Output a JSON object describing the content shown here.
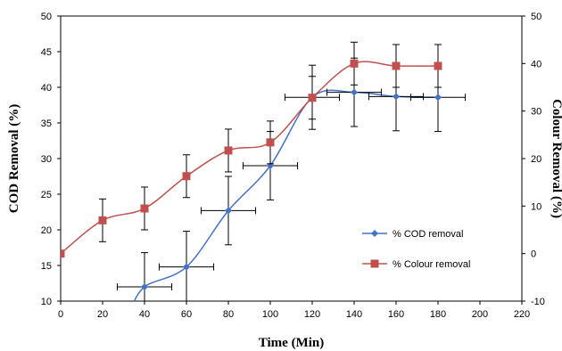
{
  "chart_data": {
    "type": "scatter",
    "title": "",
    "xlabel": "Time (Min)",
    "ylabel": "COD Removal (%)",
    "y2label": "Colour Removal (%)",
    "xlim": [
      0,
      220
    ],
    "ylim": [
      10,
      50
    ],
    "y2lim": [
      -10,
      50
    ],
    "x_ticks": [
      0,
      20,
      40,
      60,
      80,
      100,
      120,
      140,
      160,
      180,
      200,
      220
    ],
    "y_ticks": [
      10,
      15,
      20,
      25,
      30,
      35,
      40,
      45,
      50
    ],
    "y2_ticks": [
      -10,
      0,
      10,
      20,
      30,
      40,
      50
    ],
    "grid": false,
    "legend_position": "right",
    "series": [
      {
        "name": "% COD removal",
        "axis": "left",
        "color": "#4472C4",
        "marker": "diamond",
        "line": "smooth",
        "x": [
          40,
          60,
          80,
          100,
          120,
          140,
          160,
          180
        ],
        "y": [
          12,
          14.8,
          22.7,
          29.0,
          38.6,
          39.3,
          38.7,
          38.6
        ],
        "x_err": [
          13,
          13,
          13,
          13,
          13,
          13,
          13,
          13
        ],
        "y_err": [
          4.8,
          5.0,
          4.8,
          4.8,
          4.5,
          4.8,
          4.8,
          4.8
        ]
      },
      {
        "name": "% Colour removal",
        "axis": "right",
        "color": "#C0504D",
        "marker": "square",
        "line": "smooth",
        "x": [
          0,
          20,
          40,
          60,
          80,
          100,
          120,
          140,
          160,
          180
        ],
        "y": [
          0,
          7.0,
          9.5,
          16.3,
          21.7,
          23.4,
          32.8,
          40.0,
          39.5,
          39.5
        ],
        "y_err": [
          0,
          4.5,
          4.5,
          4.5,
          4.5,
          4.5,
          4.5,
          4.5,
          4.5,
          4.5
        ]
      }
    ]
  }
}
